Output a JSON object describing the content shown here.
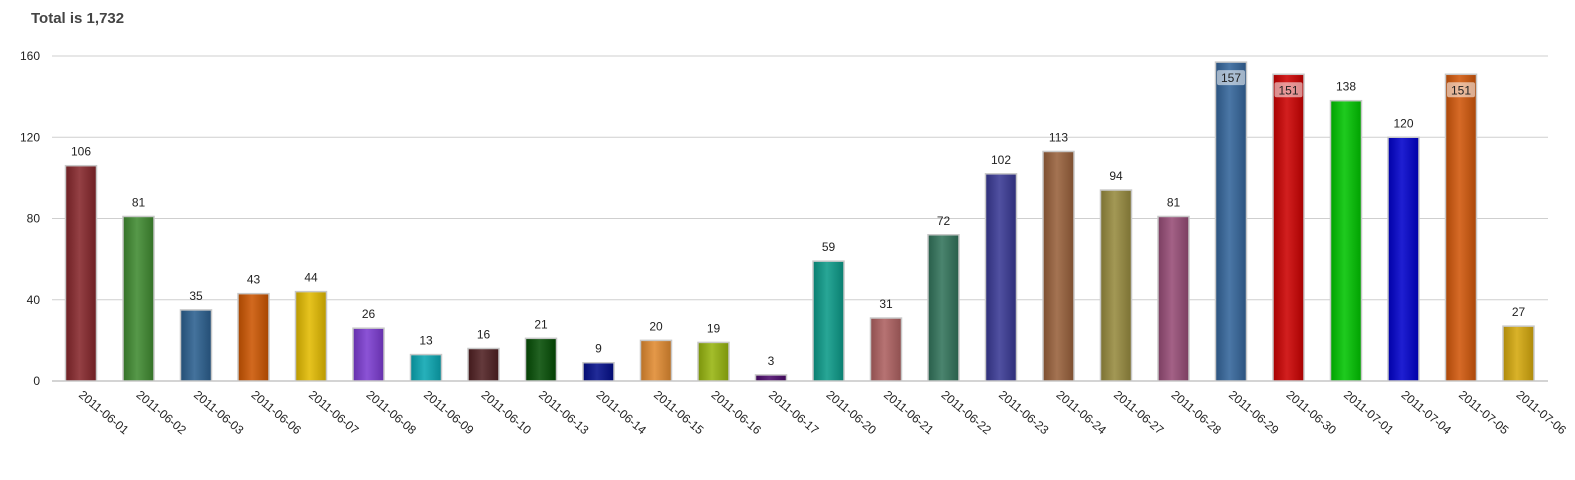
{
  "chart_data": {
    "type": "bar",
    "title": "Total is 1,732",
    "xlabel": "",
    "ylabel": "",
    "ylim": [
      0,
      160
    ],
    "yticks": [
      0,
      40,
      80,
      120,
      160
    ],
    "grid": true,
    "categories": [
      "2011-06-01",
      "2011-06-02",
      "2011-06-03",
      "2011-06-06",
      "2011-06-07",
      "2011-06-08",
      "2011-06-09",
      "2011-06-10",
      "2011-06-13",
      "2011-06-14",
      "2011-06-15",
      "2011-06-16",
      "2011-06-17",
      "2011-06-20",
      "2011-06-21",
      "2011-06-22",
      "2011-06-23",
      "2011-06-24",
      "2011-06-27",
      "2011-06-28",
      "2011-06-29",
      "2011-06-30",
      "2011-07-01",
      "2011-07-04",
      "2011-07-05",
      "2011-07-06"
    ],
    "values": [
      106,
      81,
      35,
      43,
      44,
      26,
      13,
      16,
      21,
      9,
      20,
      19,
      3,
      59,
      31,
      72,
      102,
      113,
      94,
      81,
      157,
      151,
      138,
      120,
      151,
      27
    ],
    "colors": [
      "#85262b",
      "#3f8a30",
      "#2b5f8f",
      "#cc5500",
      "#e3bb00",
      "#7b3bd0",
      "#0aa6b2",
      "#4f1f21",
      "#044d04",
      "#030e8a",
      "#e08a30",
      "#96b40e",
      "#4b0a6b",
      "#0b9a88",
      "#ad6060",
      "#31735a",
      "#383894",
      "#98603a",
      "#968a3e",
      "#964c76",
      "#33649a",
      "#cc0000",
      "#00c400",
      "#0000cc",
      "#d0560a",
      "#d4a80c"
    ]
  }
}
